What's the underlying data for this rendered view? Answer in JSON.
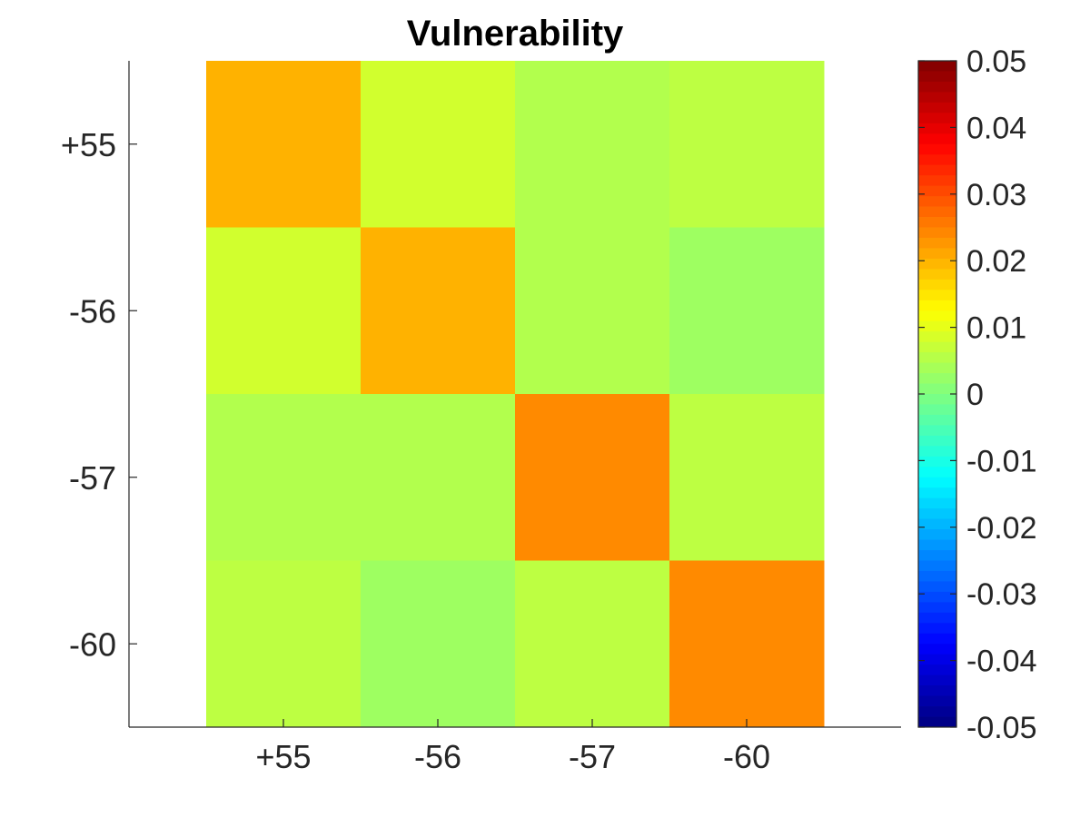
{
  "chart_data": {
    "type": "heatmap",
    "title": "Vulnerability",
    "xlabel": "",
    "ylabel": "",
    "x_categories": [
      "+55",
      "-56",
      "-57",
      "-60"
    ],
    "y_categories": [
      "+55",
      "-56",
      "-57",
      "-60"
    ],
    "values": [
      [
        0.02,
        0.008,
        0.005,
        0.006
      ],
      [
        0.008,
        0.02,
        0.005,
        0.003
      ],
      [
        0.005,
        0.005,
        0.024,
        0.006
      ],
      [
        0.006,
        0.003,
        0.006,
        0.024
      ]
    ],
    "colormap": "jet",
    "clim": [
      -0.05,
      0.05
    ],
    "colorbar": {
      "placement": "right",
      "ticks": [
        "0.05",
        "0.04",
        "0.03",
        "0.02",
        "0.01",
        "0",
        "-0.01",
        "-0.02",
        "-0.03",
        "-0.04",
        "-0.05"
      ]
    },
    "grid": false
  }
}
